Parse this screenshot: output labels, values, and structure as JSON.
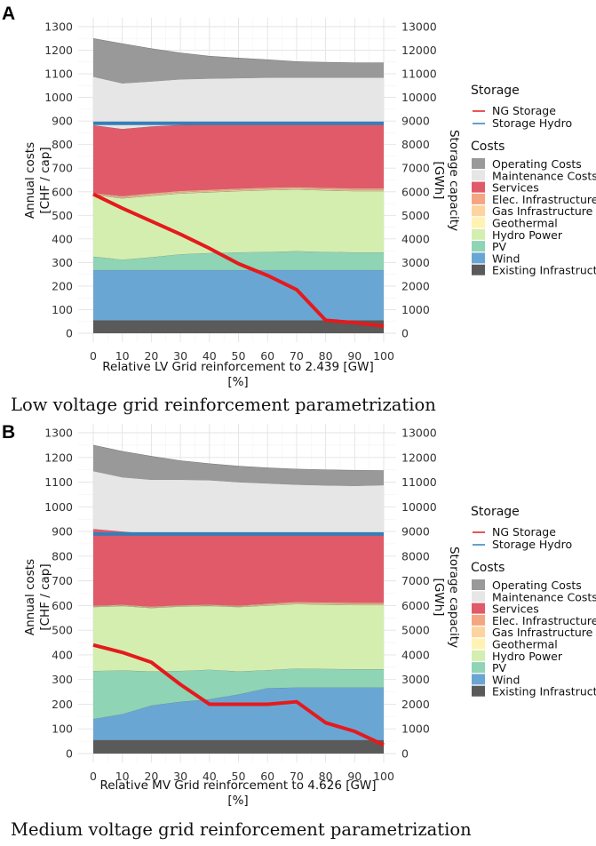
{
  "legend": {
    "storage_title": "Storage",
    "storage_items": [
      {
        "name": "NG Storage",
        "color": "#e41a1c"
      },
      {
        "name": "Storage Hydro",
        "color": "#377eb8"
      }
    ],
    "costs_title": "Costs",
    "costs_items": [
      {
        "name": "Operating Costs",
        "color": "#999999"
      },
      {
        "name": "Maintenance Costs",
        "color": "#e6e6e6"
      },
      {
        "name": "Services",
        "color": "#e05a6a"
      },
      {
        "name": "Elec. Infrastructure",
        "color": "#f4a582"
      },
      {
        "name": "Gas Infrastructure",
        "color": "#fdd49e"
      },
      {
        "name": "Geothermal",
        "color": "#fff2b3"
      },
      {
        "name": "Hydro Power",
        "color": "#d4eeb0"
      },
      {
        "name": "PV",
        "color": "#8fd4b4"
      },
      {
        "name": "Wind",
        "color": "#6aa6d4"
      },
      {
        "name": "Existing Infrastructure",
        "color": "#5a5a5a"
      }
    ]
  },
  "chart_data": [
    {
      "panel": "A",
      "type": "area",
      "caption": "Low voltage grid reinforcement parametrization",
      "xlabel_line1": "Relative LV Grid reinforcement to 2.439 [GW]",
      "xlabel_line2": "[%]",
      "ylabel_left_line1": "Annual costs",
      "ylabel_left_line2": "[CHF / cap]",
      "ylabel_right_line1": "Storage capacity",
      "ylabel_right_line2": "[GWh]",
      "x": [
        0,
        10,
        20,
        30,
        40,
        50,
        60,
        70,
        80,
        90,
        100
      ],
      "x_ticks": [
        "0",
        "10",
        "20",
        "30",
        "40",
        "50",
        "60",
        "70",
        "80",
        "90",
        "100"
      ],
      "ylim_left": [
        0,
        1300
      ],
      "y_ticks_left": [
        "0",
        "100",
        "200",
        "300",
        "400",
        "500",
        "600",
        "700",
        "800",
        "900",
        "1000",
        "1100",
        "1200",
        "1300"
      ],
      "ylim_right": [
        0,
        13000
      ],
      "y_ticks_right": [
        "0",
        "1000",
        "2000",
        "3000",
        "4000",
        "5000",
        "6000",
        "7000",
        "8000",
        "9000",
        "10000",
        "11000",
        "12000",
        "13000"
      ],
      "cumulative_costs": {
        "Existing Infrastructure": [
          55,
          55,
          55,
          55,
          55,
          55,
          55,
          55,
          55,
          55,
          55
        ],
        "Wind": [
          268,
          268,
          268,
          268,
          268,
          268,
          268,
          268,
          268,
          268,
          268
        ],
        "PV": [
          325,
          312,
          322,
          335,
          340,
          343,
          345,
          348,
          345,
          343,
          343
        ],
        "Hydro Power": [
          588,
          572,
          583,
          593,
          598,
          603,
          607,
          610,
          606,
          603,
          603
        ],
        "Geothermal": [
          589,
          573,
          584,
          594,
          599,
          604,
          608,
          611,
          607,
          604,
          604
        ],
        "Gas Infrastructure": [
          591,
          576,
          588,
          598,
          603,
          608,
          612,
          615,
          611,
          608,
          608
        ],
        "Elec. Infrastructure": [
          595,
          582,
          594,
          604,
          609,
          614,
          618,
          620,
          617,
          615,
          615
        ],
        "Services": [
          882,
          866,
          877,
          883,
          885,
          885,
          885,
          885,
          885,
          885,
          885
        ],
        "Maintenance Costs": [
          1088,
          1060,
          1068,
          1077,
          1080,
          1082,
          1084,
          1084,
          1084,
          1084,
          1084
        ],
        "Operating Costs": [
          1250,
          1228,
          1207,
          1189,
          1175,
          1167,
          1160,
          1152,
          1149,
          1147,
          1147
        ]
      },
      "storage": {
        "NG Storage": [
          5900,
          5300,
          4750,
          4200,
          3600,
          2950,
          2450,
          1850,
          550,
          450,
          300
        ],
        "Storage Hydro": [
          8900,
          8900,
          8900,
          8900,
          8900,
          8900,
          8900,
          8900,
          8900,
          8900,
          8900
        ]
      }
    },
    {
      "panel": "B",
      "type": "area",
      "caption": "Medium voltage grid reinforcement parametrization",
      "xlabel_line1": "Relative MV Grid reinforcement to 4.626 [GW]",
      "xlabel_line2": "[%]",
      "ylabel_left_line1": "Annual costs",
      "ylabel_left_line2": "[CHF / cap]",
      "ylabel_right_line1": "Storage capacity",
      "ylabel_right_line2": "[GWh]",
      "x": [
        0,
        10,
        20,
        30,
        40,
        50,
        60,
        70,
        80,
        90,
        100
      ],
      "x_ticks": [
        "0",
        "10",
        "20",
        "30",
        "40",
        "50",
        "60",
        "70",
        "80",
        "90",
        "100"
      ],
      "ylim_left": [
        0,
        1300
      ],
      "y_ticks_left": [
        "0",
        "100",
        "200",
        "300",
        "400",
        "500",
        "600",
        "700",
        "800",
        "900",
        "1000",
        "1100",
        "1200",
        "1300"
      ],
      "ylim_right": [
        0,
        13000
      ],
      "y_ticks_right": [
        "0",
        "1000",
        "2000",
        "3000",
        "4000",
        "5000",
        "6000",
        "7000",
        "8000",
        "9000",
        "10000",
        "11000",
        "12000",
        "13000"
      ],
      "cumulative_costs": {
        "Existing Infrastructure": [
          55,
          55,
          55,
          55,
          55,
          55,
          55,
          55,
          55,
          55,
          55
        ],
        "Wind": [
          140,
          160,
          195,
          210,
          220,
          240,
          265,
          268,
          268,
          268,
          268
        ],
        "PV": [
          335,
          337,
          333,
          335,
          340,
          333,
          338,
          345,
          343,
          342,
          342
        ],
        "Hydro Power": [
          594,
          598,
          590,
          596,
          598,
          594,
          600,
          606,
          604,
          602,
          602
        ],
        "Geothermal": [
          595,
          599,
          591,
          597,
          599,
          595,
          601,
          607,
          605,
          603,
          603
        ],
        "Gas Infrastructure": [
          597,
          601,
          593,
          599,
          601,
          597,
          604,
          610,
          608,
          606,
          606
        ],
        "Elec. Infrastructure": [
          600,
          604,
          596,
          602,
          604,
          600,
          608,
          615,
          613,
          612,
          612
        ],
        "Services": [
          910,
          900,
          890,
          890,
          895,
          888,
          888,
          888,
          888,
          888,
          888
        ],
        "Maintenance Costs": [
          1145,
          1120,
          1110,
          1110,
          1108,
          1100,
          1095,
          1090,
          1087,
          1085,
          1088
        ],
        "Operating Costs": [
          1250,
          1225,
          1205,
          1187,
          1175,
          1165,
          1158,
          1153,
          1150,
          1148,
          1147
        ]
      },
      "storage": {
        "NG Storage": [
          4400,
          4100,
          3700,
          2800,
          2000,
          2000,
          2000,
          2100,
          1250,
          900,
          350
        ],
        "Storage Hydro": [
          8900,
          8900,
          8900,
          8900,
          8900,
          8900,
          8900,
          8900,
          8900,
          8900,
          8900
        ]
      }
    }
  ]
}
